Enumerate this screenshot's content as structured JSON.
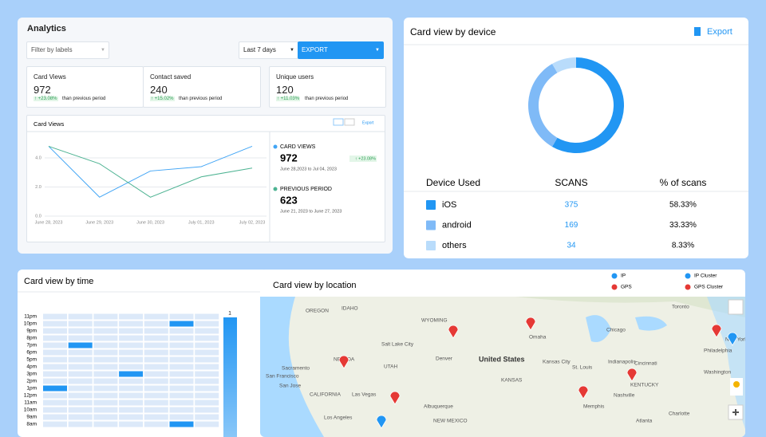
{
  "analytics": {
    "title": "Analytics",
    "filter": "Filter by labels",
    "range": "Last 7 days",
    "export": "EXPORT"
  },
  "stats": [
    {
      "label": "Card Views",
      "value": 972,
      "change": "↑ +23.08%",
      "note": "than previous period"
    },
    {
      "label": "Contact saved",
      "value": 240,
      "change": "↑ +15.02%",
      "note": "than previous period"
    },
    {
      "label": "Unique users",
      "value": 120,
      "change": "↑ +11.03%",
      "note": "than previous period"
    }
  ],
  "chart_data": [
    {
      "type": "line",
      "title": "Card Views",
      "export": "Export",
      "categories": [
        "June 28, 2023",
        "June 29, 2023",
        "June 30, 2023",
        "July 01, 2023",
        "July 02, 2023"
      ],
      "series": [
        {
          "name": "CARD VIEWS",
          "color": "#42a5f5",
          "values": [
            4.8,
            1.3,
            3.1,
            3.4,
            4.8
          ]
        },
        {
          "name": "PREVIOUS PERIOD",
          "color": "#4db392",
          "values": [
            4.8,
            3.6,
            1.3,
            2.7,
            3.3
          ]
        }
      ],
      "ylim": [
        0,
        5.7
      ],
      "yticks": [
        {
          "value": 0,
          "label": "0.0"
        },
        {
          "value": 2,
          "label": "2.0"
        },
        {
          "value": 4,
          "label": "4.0"
        }
      ],
      "grid": true,
      "legend_details": [
        {
          "total": 972,
          "change": "↑ +23.08%",
          "range": "June 28,2023 to Jul 04, 2023"
        },
        {
          "total": 623,
          "range": "June 21, 2023 to June 27, 2023"
        }
      ]
    },
    {
      "type": "pie",
      "title": "Card view by device",
      "export": "Export",
      "categories": [
        "iOS",
        "android",
        "others"
      ],
      "values": [
        58.33,
        33.33,
        8.33
      ],
      "value_labels": [
        "58.33%",
        "33.33%",
        "8.33%"
      ],
      "colors": [
        "#2196f3",
        "#7fbaf7",
        "#b9dcfb"
      ]
    },
    {
      "type": "heatmap",
      "title": "Card view by time",
      "categories": [
        "11pm",
        "10pm",
        "9pm",
        "8pm",
        "7pm",
        "6pm",
        "5pm",
        "4pm",
        "3pm",
        "2pm",
        "1pm",
        "12pm",
        "11am",
        "10am",
        "9am",
        "8am"
      ],
      "values": [
        [
          0,
          0,
          0,
          0,
          0,
          0,
          0
        ],
        [
          0,
          0,
          0,
          0,
          0,
          1,
          0
        ],
        [
          0,
          0,
          0,
          0,
          0,
          0,
          0
        ],
        [
          0,
          0,
          0,
          0,
          0,
          0,
          0
        ],
        [
          0,
          1,
          0,
          0,
          0,
          0,
          0
        ],
        [
          0,
          0,
          0,
          0,
          0,
          0,
          0
        ],
        [
          0,
          0,
          0,
          0,
          0,
          0,
          0
        ],
        [
          0,
          0,
          0,
          0,
          0,
          0,
          0
        ],
        [
          0,
          0,
          0,
          1,
          0,
          0,
          0
        ],
        [
          0,
          0,
          0,
          0,
          0,
          0,
          0
        ],
        [
          1,
          0,
          0,
          0,
          0,
          0,
          0
        ],
        [
          0,
          0,
          0,
          0,
          0,
          0,
          0
        ],
        [
          0,
          0,
          0,
          0,
          0,
          0,
          0
        ],
        [
          0,
          0,
          0,
          0,
          0,
          0,
          0
        ],
        [
          0,
          0,
          0,
          0,
          0,
          0,
          0
        ],
        [
          0,
          0,
          0,
          0,
          0,
          1,
          0
        ]
      ],
      "clim": [
        0,
        1
      ],
      "cticks": [
        1
      ]
    }
  ],
  "device_table": {
    "headers": [
      "Device Used",
      "SCANS",
      "% of scans"
    ],
    "scans": [
      375,
      169,
      34
    ]
  },
  "location": {
    "title": "Card view by location",
    "legend": [
      "IP",
      "IP Cluster",
      "GPS",
      "GPS Cluster"
    ],
    "places": [
      "OREGON",
      "IDAHO",
      "WYOMING",
      "Omaha",
      "Chicago",
      "Toronto",
      "United States",
      "Denver",
      "Kansas City",
      "St. Louis",
      "Indianapolis",
      "Cincinnati",
      "Philadelphia",
      "Washington",
      "Salt Lake City",
      "NEVADA",
      "UTAH",
      "Sacramento",
      "San Francisco",
      "San Jose",
      "CALIFORNIA",
      "Las Vegas",
      "Albuquerque",
      "NEW MEXICO",
      "Los Angeles",
      "KANSAS",
      "Nashville",
      "Memphis",
      "Atlanta",
      "Charlotte",
      "KENTUCKY",
      "New York"
    ]
  }
}
